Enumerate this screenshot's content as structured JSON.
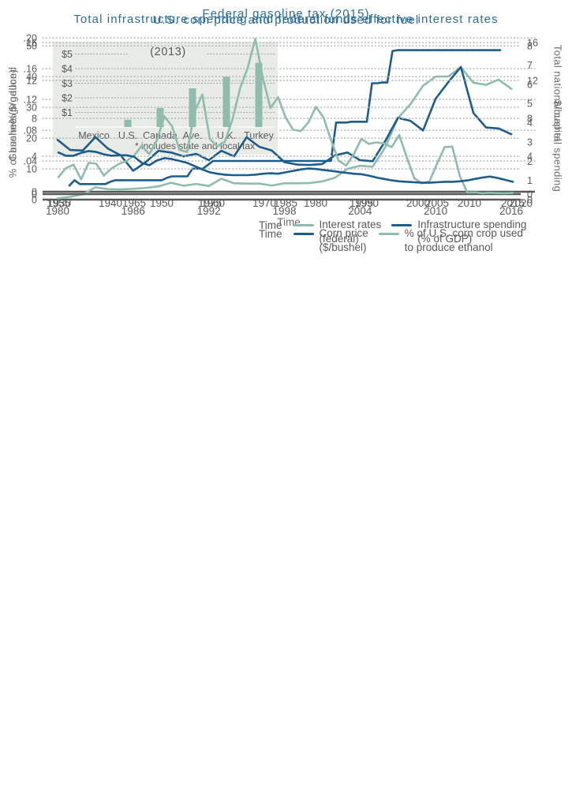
{
  "colors": {
    "title_blue": "#2d6d96",
    "line_blue": "#1e5c8a",
    "line_green": "#8fbcac",
    "text_gray": "#58595b",
    "axis_gray": "#6d6e71",
    "grid_gray": "#b4b5b7",
    "inset_bg": "#e9ebe7"
  },
  "chart_data": [
    {
      "id": "gas_tax",
      "type": "line",
      "title": "Federal gasoline tax (2015)",
      "xlabel": "Time",
      "ylabel_left": "Gasoline ($/gallon)",
      "x_ticks": [
        1930,
        1940,
        1950,
        1960,
        1970,
        1980,
        1990,
        2000,
        2010,
        2020
      ],
      "left_tick_values": [
        0,
        0.04,
        0.08,
        0.12,
        0.16,
        0.2
      ],
      "left_tick_labels": [
        "0",
        ".04",
        ".08",
        ".12",
        ".16",
        ".20"
      ],
      "xlim": [
        1930,
        2020
      ],
      "ylim_left": [
        0,
        0.2
      ],
      "grid": true,
      "series": [
        {
          "name": "Federal gasoline tax ($/gallon)",
          "color": "#1e5c8a",
          "axis": "left",
          "x_start": 1932,
          "values": [
            0.008,
            0.015,
            0.01,
            0.01,
            0.01,
            0.01,
            0.01,
            0.01,
            0.013,
            0.015,
            0.015,
            0.015,
            0.015,
            0.015,
            0.015,
            0.015,
            0.015,
            0.015,
            0.015,
            0.018,
            0.02,
            0.02,
            0.02,
            0.02,
            0.03,
            0.03,
            0.03,
            0.035,
            0.04,
            0.04,
            0.04,
            0.04,
            0.04,
            0.04,
            0.04,
            0.04,
            0.04,
            0.04,
            0.04,
            0.04,
            0.04,
            0.04,
            0.04,
            0.04,
            0.04,
            0.04,
            0.04,
            0.04,
            0.04,
            0.04,
            0.04,
            0.04,
            0.09,
            0.09,
            0.09,
            0.091,
            0.091,
            0.091,
            0.091,
            0.141,
            0.141,
            0.142,
            0.142,
            0.183,
            0.184,
            0.184,
            0.184,
            0.184,
            0.184,
            0.184,
            0.184,
            0.184,
            0.184,
            0.184,
            0.184,
            0.184,
            0.184,
            0.184,
            0.184,
            0.184,
            0.184,
            0.184,
            0.184,
            0.184,
            0.184
          ]
        }
      ],
      "inset": {
        "type": "bar",
        "title": "(2013)",
        "note": "* includes state and local tax",
        "categories": [
          "Mexico",
          "U.S.",
          "Canada",
          "Ave.",
          "U.K.",
          "Turkey"
        ],
        "values": [
          0,
          0.5,
          1.3,
          2.65,
          3.45,
          4.4
        ],
        "y_tick_values": [
          1,
          2,
          3,
          4,
          5
        ],
        "y_tick_labels": [
          "$1",
          "$2",
          "$3",
          "$4",
          "$5"
        ],
        "bar_color": "#8fbcac"
      }
    },
    {
      "id": "corn",
      "type": "line",
      "title": "U.S. corn price and production used for fuel",
      "xlabel": "Time",
      "ylabel_left": "% of bushels produced",
      "ylabel_right": "$/bushel",
      "x_ticks": [
        1980,
        1986,
        1992,
        1998,
        2004,
        2010,
        2016
      ],
      "left_tick_values": [
        0,
        10,
        20,
        30,
        40,
        50
      ],
      "left_tick_labels": [
        "0",
        "10",
        "20",
        "30",
        "40",
        "50"
      ],
      "right_tick_values": [
        0,
        1,
        2,
        3,
        4,
        5,
        6,
        7,
        8
      ],
      "right_tick_labels": [
        "0",
        "1",
        "2",
        "3",
        "4",
        "5",
        "6",
        "7",
        "8"
      ],
      "xlim": [
        1980,
        2016
      ],
      "ylim_left": [
        0,
        50
      ],
      "ylim_right": [
        0,
        8
      ],
      "grid": true,
      "series": [
        {
          "name": "% of U.S. corn crop used to produce ethanol",
          "color": "#8fbcac",
          "axis": "left",
          "x_start": 1980,
          "values": [
            0.4,
            0.9,
            1.7,
            4.0,
            3.4,
            3.3,
            3.5,
            3.8,
            4.3,
            5.5,
            4.5,
            5.1,
            4.4,
            6.8,
            5.3,
            5.2,
            5.2,
            4.6,
            5.3,
            5.3,
            5.4,
            5.9,
            7.1,
            10.0,
            11.0,
            10.7,
            17.0,
            26.5,
            31.0,
            37.0,
            40.0,
            40.0,
            43.0,
            38.0,
            37.3,
            39.0,
            36.0
          ]
        },
        {
          "name": "Corn price ($/bushel)",
          "color": "#1e5c8a",
          "axis": "right",
          "x_start": 1980,
          "values": [
            3.11,
            2.58,
            2.55,
            3.25,
            2.65,
            2.3,
            1.5,
            1.95,
            2.54,
            2.45,
            2.25,
            2.38,
            2.05,
            2.54,
            2.25,
            3.24,
            2.75,
            2.55,
            1.95,
            1.82,
            1.8,
            1.85,
            2.3,
            2.45,
            2.05,
            2.0,
            3.05,
            4.25,
            4.1,
            3.6,
            5.25,
            6.1,
            6.9,
            4.5,
            3.75,
            3.7,
            3.4
          ]
        }
      ],
      "legend": {
        "items": [
          {
            "color": "#1e5c8a",
            "lines": [
              "Corn price",
              "($/bushel)"
            ]
          },
          {
            "color": "#8fbcac",
            "lines": [
              "% of U.S. corn crop used",
              "to produce ethanol"
            ]
          }
        ]
      }
    },
    {
      "id": "infra",
      "type": "line",
      "title": "Total infrastructure spending and federal funds effective interest rates",
      "xlabel": "Time",
      "ylabel_left": "%",
      "ylabel_right": "Total national capital spending",
      "x_ticks": [
        1955,
        1965,
        1975,
        1985,
        1995,
        2005,
        2015
      ],
      "left_tick_values": [
        0,
        4,
        8,
        12,
        16
      ],
      "left_tick_labels": [
        "0",
        "4",
        "8",
        "12",
        "16"
      ],
      "right_tick_values": [
        0,
        4,
        8,
        12,
        16
      ],
      "right_tick_labels": [
        "0",
        "4",
        "8",
        "12",
        "16"
      ],
      "xlim": [
        1955,
        2015
      ],
      "ylim_left": [
        0,
        16
      ],
      "ylim_right": [
        0,
        16
      ],
      "grid": true,
      "series": [
        {
          "name": "Interest rates (federal)",
          "color": "#8fbcac",
          "axis": "left",
          "x_start": 1955,
          "values": [
            1.79,
            2.73,
            3.11,
            1.57,
            3.31,
            3.21,
            1.96,
            2.71,
            3.18,
            3.5,
            4.07,
            5.11,
            4.22,
            5.66,
            8.21,
            7.17,
            4.67,
            4.44,
            8.74,
            10.51,
            5.82,
            5.05,
            5.54,
            7.94,
            11.2,
            13.35,
            16.39,
            12.24,
            9.09,
            10.23,
            8.1,
            6.8,
            6.66,
            7.57,
            9.21,
            8.1,
            5.69,
            3.52,
            3.02,
            4.21,
            5.83,
            5.3,
            5.46,
            5.35,
            4.97,
            6.24,
            3.88,
            1.67,
            1.13,
            1.35,
            3.22,
            4.97,
            5.02,
            1.92,
            0.16,
            0.18,
            0.1,
            0.14,
            0.11,
            0.09,
            0.13
          ]
        },
        {
          "name": "Infrastructure spending (% of GDP)",
          "color": "#1e5c8a",
          "axis": "left",
          "x_start": 1955,
          "values": [
            4.4,
            4.05,
            4.05,
            4.35,
            4.55,
            4.45,
            4.2,
            4.05,
            4.1,
            4.1,
            3.95,
            3.3,
            3.05,
            3.55,
            3.8,
            3.7,
            3.5,
            3.3,
            2.95,
            2.6,
            2.3,
            2.15,
            2.05,
            2.0,
            2.0,
            2.0,
            2.05,
            2.15,
            2.2,
            2.15,
            2.3,
            2.45,
            2.6,
            2.7,
            2.65,
            2.55,
            2.45,
            2.35,
            2.25,
            2.15,
            2.1,
            1.95,
            1.75,
            1.6,
            1.45,
            1.35,
            1.3,
            1.25,
            1.2,
            1.2,
            1.25,
            1.3,
            1.3,
            1.35,
            1.45,
            1.6,
            1.75,
            1.85,
            1.7,
            1.5,
            1.3
          ]
        }
      ],
      "legend": {
        "items": [
          {
            "color": "#8fbcac",
            "lines": [
              "Interest rates",
              "(federal)"
            ]
          },
          {
            "color": "#1e5c8a",
            "lines": [
              "Infrastructure spending",
              "(% of GDP)"
            ]
          }
        ]
      }
    }
  ]
}
